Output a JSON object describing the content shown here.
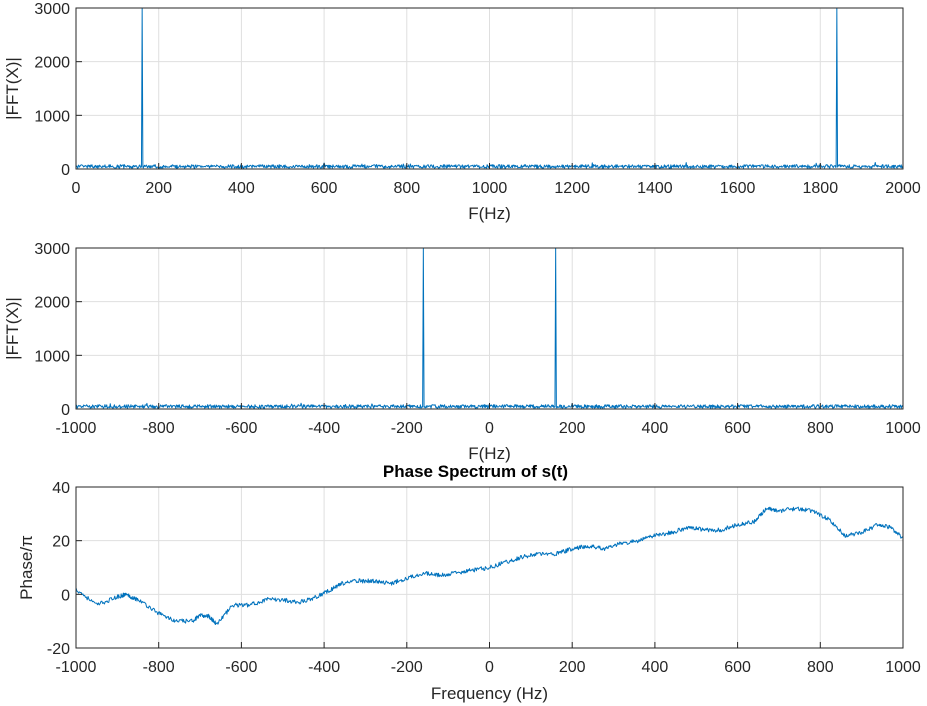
{
  "chart_data": [
    {
      "type": "line",
      "title": "",
      "xlabel": "F(Hz)",
      "ylabel": "|FFT(X)|",
      "xlim": [
        0,
        2000
      ],
      "ylim": [
        0,
        3000
      ],
      "grid": true,
      "xticks": [
        0,
        200,
        400,
        600,
        800,
        1000,
        1200,
        1400,
        1600,
        1800,
        2000
      ],
      "yticks": [
        0,
        1000,
        2000,
        3000
      ],
      "xtick_labels": [
        "0",
        "200",
        "400",
        "600",
        "800",
        "1000",
        "1200",
        "1400",
        "1600",
        "1800",
        "2000"
      ],
      "ytick_labels": [
        "0",
        "1000",
        "2000",
        "3000"
      ],
      "color": "#0072BD",
      "noise_floor": 60,
      "peaks": [
        {
          "x": 160,
          "y": 3000,
          "shoulder": 1550
        },
        {
          "x": 1840,
          "y": 3000,
          "shoulder": 1550
        }
      ]
    },
    {
      "type": "line",
      "title": "",
      "xlabel": "F(Hz)",
      "ylabel": "|FFT(X)|",
      "xlim": [
        -1000,
        1000
      ],
      "ylim": [
        0,
        3000
      ],
      "grid": true,
      "xticks": [
        -1000,
        -800,
        -600,
        -400,
        -200,
        0,
        200,
        400,
        600,
        800,
        1000
      ],
      "yticks": [
        0,
        1000,
        2000,
        3000
      ],
      "xtick_labels": [
        "-1000",
        "-800",
        "-600",
        "-400",
        "-200",
        "0",
        "200",
        "400",
        "600",
        "800",
        "1000"
      ],
      "ytick_labels": [
        "0",
        "1000",
        "2000",
        "3000"
      ],
      "color": "#0072BD",
      "noise_floor": 60,
      "peaks": [
        {
          "x": -160,
          "y": 3000,
          "shoulder": 1550
        },
        {
          "x": 160,
          "y": 3000,
          "shoulder": 1550
        }
      ]
    },
    {
      "type": "line",
      "title": "Phase Spectrum of s(t)",
      "xlabel": "Frequency (Hz)",
      "ylabel": "Phase/π",
      "xlim": [
        -1000,
        1000
      ],
      "ylim": [
        -20,
        40
      ],
      "grid": true,
      "xticks": [
        -1000,
        -800,
        -600,
        -400,
        -200,
        0,
        200,
        400,
        600,
        800,
        1000
      ],
      "yticks": [
        -20,
        0,
        20,
        40
      ],
      "xtick_labels": [
        "-1000",
        "-800",
        "-600",
        "-400",
        "-200",
        "0",
        "200",
        "400",
        "600",
        "800",
        "1000"
      ],
      "ytick_labels": [
        "-20",
        "0",
        "20",
        "40"
      ],
      "color": "#0072BD",
      "x": [
        -1000,
        -950,
        -900,
        -880,
        -850,
        -800,
        -760,
        -720,
        -700,
        -680,
        -660,
        -620,
        -580,
        -540,
        -500,
        -460,
        -420,
        -380,
        -360,
        -320,
        -280,
        -240,
        -200,
        -160,
        -120,
        -80,
        -40,
        0,
        40,
        80,
        120,
        160,
        200,
        240,
        280,
        320,
        360,
        400,
        440,
        480,
        520,
        560,
        600,
        640,
        670,
        700,
        740,
        780,
        820,
        860,
        900,
        940,
        970,
        1000
      ],
      "y": [
        2,
        -4,
        -1,
        0,
        -2,
        -7,
        -10,
        -10,
        -8,
        -8,
        -11,
        -4,
        -4,
        -2,
        -2,
        -3,
        -1,
        2,
        4,
        5,
        5,
        4,
        6,
        8,
        7,
        8,
        9,
        10,
        12,
        14,
        15,
        15,
        17,
        18,
        17,
        19,
        20,
        22,
        23,
        25,
        24,
        24,
        26,
        27,
        32,
        31,
        32,
        31,
        28,
        22,
        23,
        26,
        25,
        21
      ]
    }
  ]
}
